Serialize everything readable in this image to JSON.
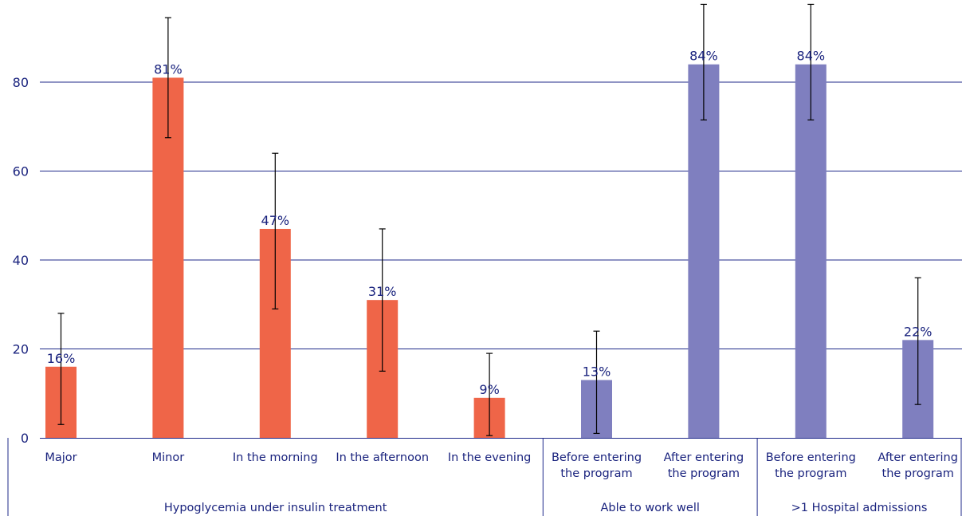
{
  "chart_data": {
    "type": "bar",
    "title": "",
    "xlabel": "",
    "ylabel": "",
    "ylim": [
      0,
      95
    ],
    "yticks": [
      0,
      20,
      40,
      60,
      80
    ],
    "grid": true,
    "categories": [
      "Major",
      "Minor",
      "In the morning",
      "In the afternoon",
      "In the evening",
      "Before entering\nthe program",
      "After entering\nthe program",
      "Before entering\nthe program",
      "After entering\nthe program"
    ],
    "values": [
      16,
      81,
      47,
      31,
      9,
      13,
      84,
      84,
      22
    ],
    "data_labels": [
      "16%",
      "81%",
      "47%",
      "31%",
      "9%",
      "13%",
      "84%",
      "84%",
      "22%"
    ],
    "error_low": [
      3,
      67.5,
      29,
      15,
      0.5,
      1,
      71.5,
      71.5,
      7.5
    ],
    "error_high": [
      28,
      94.5,
      64,
      47,
      19,
      24,
      97.5,
      97.5,
      36
    ],
    "groups": [
      {
        "label": "Hypoglycemia under insulin treatment",
        "start": 0,
        "end": 4,
        "color": "#ef6548"
      },
      {
        "label": "Able to work well",
        "start": 5,
        "end": 6,
        "color": "#7f7fbf"
      },
      {
        "label": ">1 Hospital admissions",
        "start": 7,
        "end": 8,
        "color": "#7f7fbf"
      }
    ],
    "colors": {
      "axis_text": "#1a237e",
      "gridline": "#1f2a8a",
      "error_bar": "#000000"
    }
  }
}
